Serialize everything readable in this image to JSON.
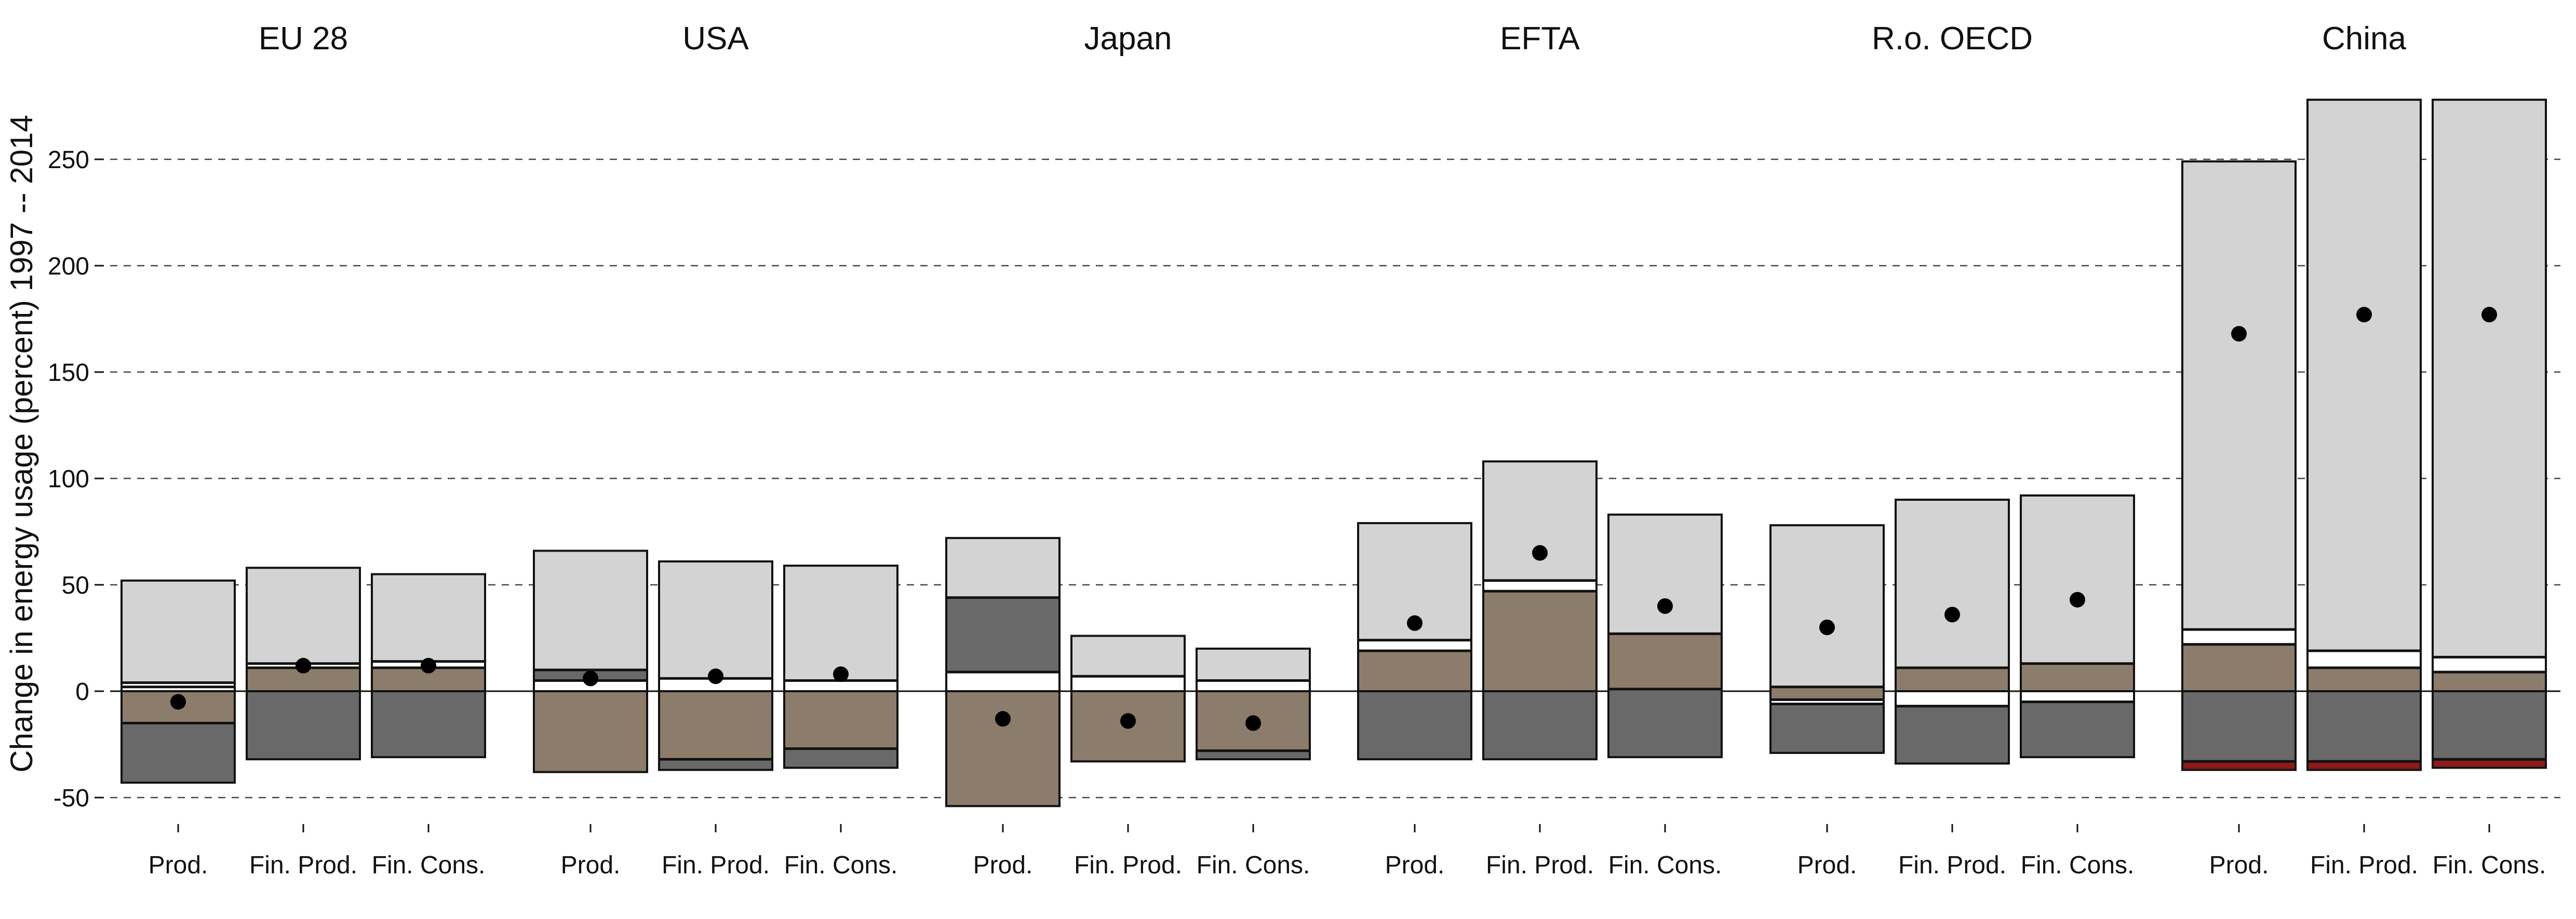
{
  "chart_data": {
    "type": "bar",
    "ylabel": "Change in energy usage (percent) 1997 -- 2014",
    "ylim": [
      -62,
      285
    ],
    "yticks": [
      -50,
      0,
      50,
      100,
      150,
      200,
      250
    ],
    "grid": "dashed horizontal at major ticks",
    "categories": [
      "Prod.",
      "Fin. Prod.",
      "Fin. Cons."
    ],
    "colors": {
      "top_light": "#d3d3d3",
      "brown": "#8c7c6b",
      "dark": "#696969",
      "red": "#8b1a1a",
      "white": "#ffffff",
      "outline": "#111111",
      "grid": "#444444",
      "dot": "#000000"
    },
    "panels": [
      {
        "title": "EU 28",
        "bars": [
          {
            "category": "Prod.",
            "top": 52,
            "bottom": -43,
            "net": -5,
            "segments": [
              {
                "color": "light",
                "from": 4,
                "to": 52
              },
              {
                "color": "white",
                "from": 2,
                "to": 4
              },
              {
                "color": "brown",
                "from": -15,
                "to": 0
              },
              {
                "color": "dark",
                "from": -43,
                "to": -15
              }
            ]
          },
          {
            "category": "Fin. Prod.",
            "top": 58,
            "bottom": -32,
            "net": 12,
            "segments": [
              {
                "color": "light",
                "from": 13,
                "to": 58
              },
              {
                "color": "white",
                "from": 11,
                "to": 13
              },
              {
                "color": "brown",
                "from": 0,
                "to": 11
              },
              {
                "color": "dark",
                "from": -32,
                "to": 0
              }
            ]
          },
          {
            "category": "Fin. Cons.",
            "top": 55,
            "bottom": -31,
            "net": 12,
            "segments": [
              {
                "color": "light",
                "from": 14,
                "to": 55
              },
              {
                "color": "white",
                "from": 11,
                "to": 14
              },
              {
                "color": "brown",
                "from": 0,
                "to": 11
              },
              {
                "color": "dark",
                "from": -31,
                "to": 0
              }
            ]
          }
        ]
      },
      {
        "title": "USA",
        "bars": [
          {
            "category": "Prod.",
            "top": 66,
            "bottom": -38,
            "net": 6,
            "segments": [
              {
                "color": "light",
                "from": 10,
                "to": 66
              },
              {
                "color": "dark",
                "from": 5,
                "to": 10
              },
              {
                "color": "white",
                "from": 0,
                "to": 5
              },
              {
                "color": "brown",
                "from": -38,
                "to": 0
              }
            ]
          },
          {
            "category": "Fin. Prod.",
            "top": 61,
            "bottom": -37,
            "net": 7,
            "segments": [
              {
                "color": "light",
                "from": 6,
                "to": 61
              },
              {
                "color": "white",
                "from": 0,
                "to": 6
              },
              {
                "color": "brown",
                "from": -32,
                "to": 0
              },
              {
                "color": "dark",
                "from": -37,
                "to": -32
              }
            ]
          },
          {
            "category": "Fin. Cons.",
            "top": 59,
            "bottom": -36,
            "net": 8,
            "segments": [
              {
                "color": "light",
                "from": 5,
                "to": 59
              },
              {
                "color": "white",
                "from": 0,
                "to": 5
              },
              {
                "color": "brown",
                "from": -27,
                "to": 0
              },
              {
                "color": "dark",
                "from": -36,
                "to": -27
              }
            ]
          }
        ]
      },
      {
        "title": "Japan",
        "bars": [
          {
            "category": "Prod.",
            "top": 72,
            "bottom": -54,
            "net": -13,
            "segments": [
              {
                "color": "light",
                "from": 44,
                "to": 72
              },
              {
                "color": "dark",
                "from": 9,
                "to": 44
              },
              {
                "color": "white",
                "from": 0,
                "to": 9
              },
              {
                "color": "brown",
                "from": -54,
                "to": 0
              }
            ]
          },
          {
            "category": "Fin. Prod.",
            "top": 26,
            "bottom": -33,
            "net": -14,
            "segments": [
              {
                "color": "light",
                "from": 7,
                "to": 26
              },
              {
                "color": "white",
                "from": 0,
                "to": 7
              },
              {
                "color": "brown",
                "from": -33,
                "to": 0
              }
            ]
          },
          {
            "category": "Fin. Cons.",
            "top": 20,
            "bottom": -32,
            "net": -15,
            "segments": [
              {
                "color": "light",
                "from": 5,
                "to": 20
              },
              {
                "color": "white",
                "from": 0,
                "to": 5
              },
              {
                "color": "brown",
                "from": -28,
                "to": 0
              },
              {
                "color": "dark",
                "from": -32,
                "to": -28
              }
            ]
          }
        ]
      },
      {
        "title": "EFTA",
        "bars": [
          {
            "category": "Prod.",
            "top": 79,
            "bottom": -32,
            "net": 32,
            "segments": [
              {
                "color": "light",
                "from": 24,
                "to": 79
              },
              {
                "color": "white",
                "from": 19,
                "to": 24
              },
              {
                "color": "brown",
                "from": 0,
                "to": 19
              },
              {
                "color": "dark",
                "from": -32,
                "to": 0
              }
            ]
          },
          {
            "category": "Fin. Prod.",
            "top": 108,
            "bottom": -32,
            "net": 65,
            "segments": [
              {
                "color": "light",
                "from": 52,
                "to": 108
              },
              {
                "color": "white",
                "from": 47,
                "to": 52
              },
              {
                "color": "brown",
                "from": 0,
                "to": 47
              },
              {
                "color": "dark",
                "from": -32,
                "to": 0
              }
            ]
          },
          {
            "category": "Fin. Cons.",
            "top": 83,
            "bottom": -31,
            "net": 40,
            "segments": [
              {
                "color": "light",
                "from": 27,
                "to": 83
              },
              {
                "color": "brown",
                "from": 1,
                "to": 27
              },
              {
                "color": "dark",
                "from": -31,
                "to": 1
              }
            ]
          }
        ]
      },
      {
        "title": "R.o. OECD",
        "bars": [
          {
            "category": "Prod.",
            "top": 78,
            "bottom": -29,
            "net": 30,
            "segments": [
              {
                "color": "light",
                "from": 2,
                "to": 78
              },
              {
                "color": "brown",
                "from": -4,
                "to": 2
              },
              {
                "color": "white",
                "from": -6,
                "to": -4
              },
              {
                "color": "dark",
                "from": -29,
                "to": -6
              }
            ]
          },
          {
            "category": "Fin. Prod.",
            "top": 90,
            "bottom": -34,
            "net": 36,
            "segments": [
              {
                "color": "light",
                "from": 11,
                "to": 90
              },
              {
                "color": "brown",
                "from": 0,
                "to": 11
              },
              {
                "color": "white",
                "from": -7,
                "to": 0
              },
              {
                "color": "dark",
                "from": -34,
                "to": -7
              }
            ]
          },
          {
            "category": "Fin. Cons.",
            "top": 92,
            "bottom": -31,
            "net": 43,
            "segments": [
              {
                "color": "light",
                "from": 13,
                "to": 92
              },
              {
                "color": "brown",
                "from": 0,
                "to": 13
              },
              {
                "color": "white",
                "from": -5,
                "to": 0
              },
              {
                "color": "dark",
                "from": -31,
                "to": -5
              }
            ]
          }
        ]
      },
      {
        "title": "China",
        "bars": [
          {
            "category": "Prod.",
            "top": 249,
            "bottom": -37,
            "net": 168,
            "segments": [
              {
                "color": "light",
                "from": 29,
                "to": 249
              },
              {
                "color": "white",
                "from": 22,
                "to": 29
              },
              {
                "color": "brown",
                "from": 0,
                "to": 22
              },
              {
                "color": "dark",
                "from": -33,
                "to": 0
              },
              {
                "color": "red",
                "from": -37,
                "to": -33
              }
            ]
          },
          {
            "category": "Fin. Prod.",
            "top": 278,
            "bottom": -37,
            "net": 177,
            "segments": [
              {
                "color": "light",
                "from": 19,
                "to": 278
              },
              {
                "color": "white",
                "from": 11,
                "to": 19
              },
              {
                "color": "brown",
                "from": 0,
                "to": 11
              },
              {
                "color": "dark",
                "from": -33,
                "to": 0
              },
              {
                "color": "red",
                "from": -37,
                "to": -33
              }
            ]
          },
          {
            "category": "Fin. Cons.",
            "top": 278,
            "bottom": -36,
            "net": 177,
            "segments": [
              {
                "color": "light",
                "from": 16,
                "to": 278
              },
              {
                "color": "white",
                "from": 9,
                "to": 16
              },
              {
                "color": "brown",
                "from": 0,
                "to": 9
              },
              {
                "color": "dark",
                "from": -32,
                "to": 0
              },
              {
                "color": "red",
                "from": -36,
                "to": -32
              }
            ]
          }
        ]
      }
    ]
  }
}
